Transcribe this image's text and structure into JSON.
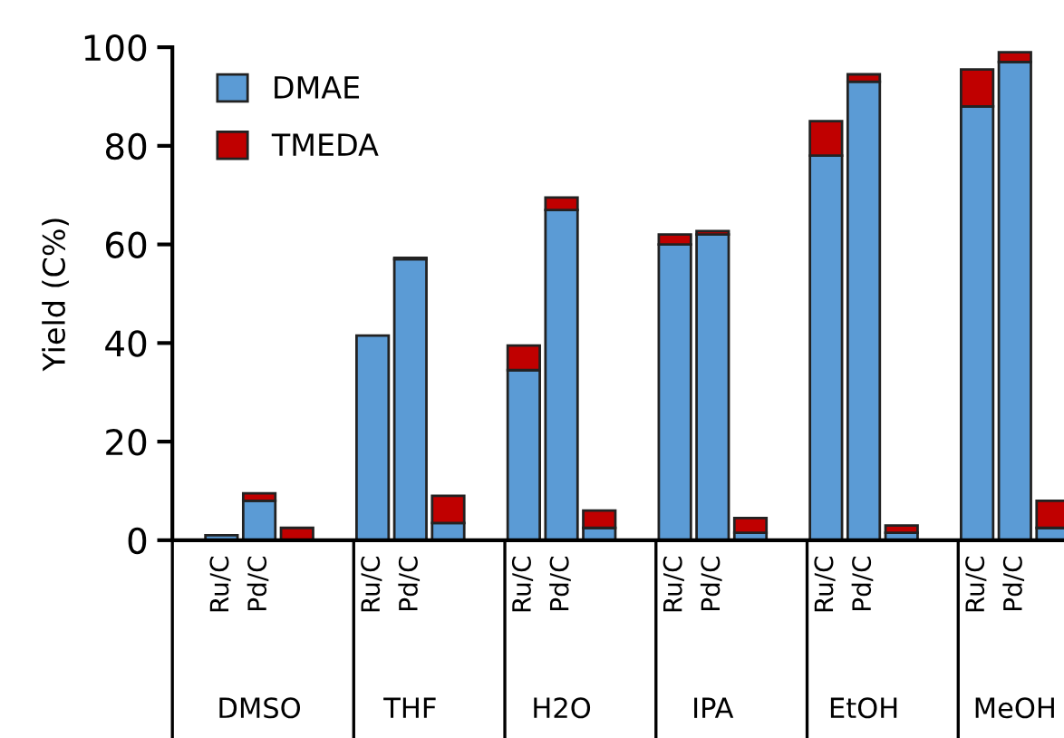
{
  "chart_data": {
    "type": "bar",
    "stacked": true,
    "ylabel": "Yield (C%)",
    "categories": [
      "Ru/C",
      "Pd/C",
      null,
      "Ru/C",
      "Pd/C",
      null,
      "Ru/C",
      "Pd/C",
      null,
      "Ru/C",
      "Pd/C",
      null,
      "Ru/C",
      "Pd/C",
      null,
      "Ru/C",
      "Pd/C",
      null
    ],
    "series": [
      {
        "name": "DMAE",
        "color": "#5b9bd5",
        "values": [
          1,
          8,
          null,
          41.5,
          57,
          3.5,
          34.5,
          67,
          2.5,
          60,
          62,
          1.5,
          78,
          93,
          1.5,
          88,
          97,
          2.5
        ]
      },
      {
        "name": "TMEDA",
        "color": "#c00000",
        "values": [
          null,
          1.5,
          2.5,
          null,
          0.3,
          5.5,
          5,
          2.5,
          3.5,
          2,
          0.7,
          3,
          7,
          1.5,
          1.5,
          7.5,
          2,
          5.5
        ]
      }
    ],
    "annotations": [
      "DMSO",
      "THF",
      "H2O",
      "IPA",
      "EtOH",
      "MeOH"
    ],
    "ylim": [
      0,
      100
    ],
    "yticks": [
      0,
      20,
      40,
      60,
      80,
      100
    ],
    "grid": false,
    "legend": "top left"
  }
}
